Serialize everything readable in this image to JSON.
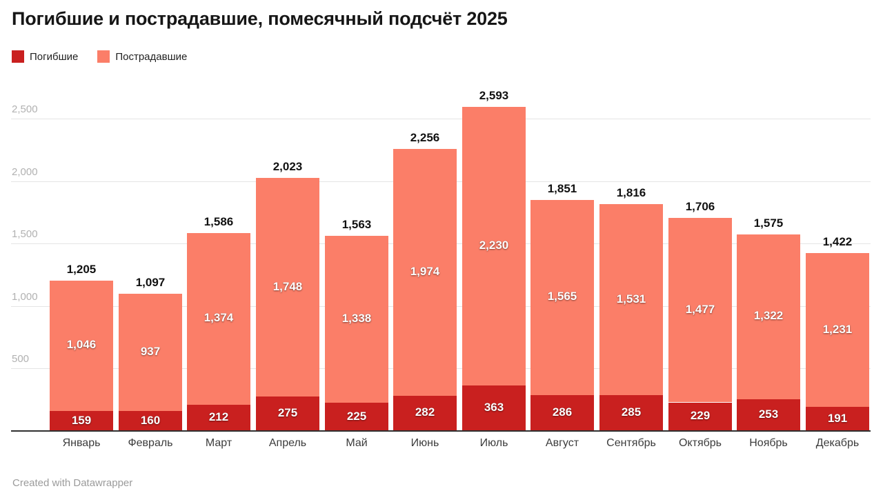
{
  "title": "Погибшие и пострадавшие, помесячный подсчёт 2025",
  "legend": [
    {
      "label": "Погибшие",
      "color": "#c9201f"
    },
    {
      "label": "Пострадавшие",
      "color": "#fb7e68"
    }
  ],
  "footer": {
    "credit": "Created with Datawrapper"
  },
  "colors": {
    "dead": "#c9201f",
    "injured": "#fb7e68",
    "gridline": "#e4e4e4",
    "axis_line": "#2f2f2f",
    "tick_text": "#b1b1b1",
    "month_text": "#3c3c3c",
    "total_text": "#111111",
    "background": "#ffffff"
  },
  "chart_data": {
    "type": "bar",
    "stacked": true,
    "title": "Погибшие и пострадавшие, помесячный подсчёт 2025",
    "xlabel": "",
    "ylabel": "",
    "grid": true,
    "legend_position": "top-left",
    "categories": [
      "Январь",
      "Февраль",
      "Март",
      "Апрель",
      "Май",
      "Июнь",
      "Июль",
      "Август",
      "Сентябрь",
      "Октябрь",
      "Ноябрь",
      "Декабрь"
    ],
    "series": [
      {
        "name": "Погибшие",
        "color": "#c9201f",
        "values": [
          159,
          160,
          212,
          275,
          225,
          282,
          363,
          286,
          285,
          229,
          253,
          191
        ]
      },
      {
        "name": "Пострадавшие",
        "color": "#fb7e68",
        "values": [
          1046,
          937,
          1374,
          1748,
          1338,
          1974,
          2230,
          1565,
          1531,
          1477,
          1322,
          1231
        ]
      }
    ],
    "totals": [
      1205,
      1097,
      1586,
      2023,
      1563,
      2256,
      2593,
      1851,
      1816,
      1706,
      1575,
      1422
    ],
    "total_labels": [
      "1,205",
      "1,097",
      "1,586",
      "2,023",
      "1,563",
      "2,256",
      "2,593",
      "1,851",
      "1,816",
      "1,706",
      "1,575",
      "1,422"
    ],
    "ylim": [
      0,
      2500
    ],
    "y_ticks": [
      {
        "value": 500,
        "label": "500"
      },
      {
        "value": 1000,
        "label": "1,000"
      },
      {
        "value": 1500,
        "label": "1,500"
      },
      {
        "value": 2000,
        "label": "2,000"
      },
      {
        "value": 2500,
        "label": "2,500"
      }
    ]
  }
}
